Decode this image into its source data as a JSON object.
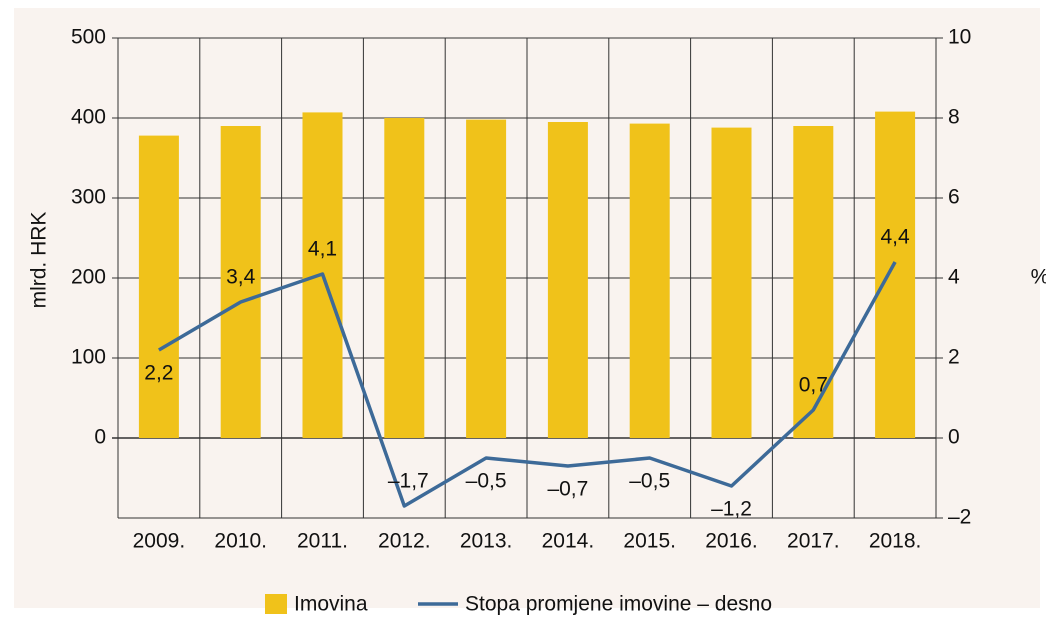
{
  "chart_data": {
    "type": "bar_line",
    "categories": [
      "2009.",
      "2010.",
      "2011.",
      "2012.",
      "2013.",
      "2014.",
      "2015.",
      "2016.",
      "2017.",
      "2018."
    ],
    "series": [
      {
        "name": "Imovina",
        "type": "bar",
        "color": "#f0c21a",
        "values": [
          378,
          390,
          407,
          400,
          398,
          395,
          393,
          388,
          390,
          408
        ]
      },
      {
        "name": "Stopa promjene imovine – desno",
        "type": "line",
        "axis": "y2",
        "color": "#3d6a98",
        "values": [
          2.2,
          3.4,
          4.1,
          -1.7,
          -0.5,
          -0.7,
          -0.5,
          -1.2,
          0.7,
          4.4
        ],
        "value_labels": [
          "2,2",
          "3,4",
          "4,1",
          "–1,7",
          "–0,5",
          "–0,7",
          "–0,5",
          "–1,2",
          "0,7",
          "4,4"
        ]
      }
    ],
    "ylabel": "mlrd. HRK",
    "y2label": "%",
    "ylim": [
      -100,
      500
    ],
    "yticks": [
      0,
      100,
      200,
      300,
      400,
      500
    ],
    "y2lim": [
      -2,
      10
    ],
    "y2ticks": [
      {
        "value": -2,
        "label": "–2"
      },
      0,
      2,
      4,
      6,
      8,
      10
    ],
    "grid": true,
    "legend": "bottom"
  }
}
